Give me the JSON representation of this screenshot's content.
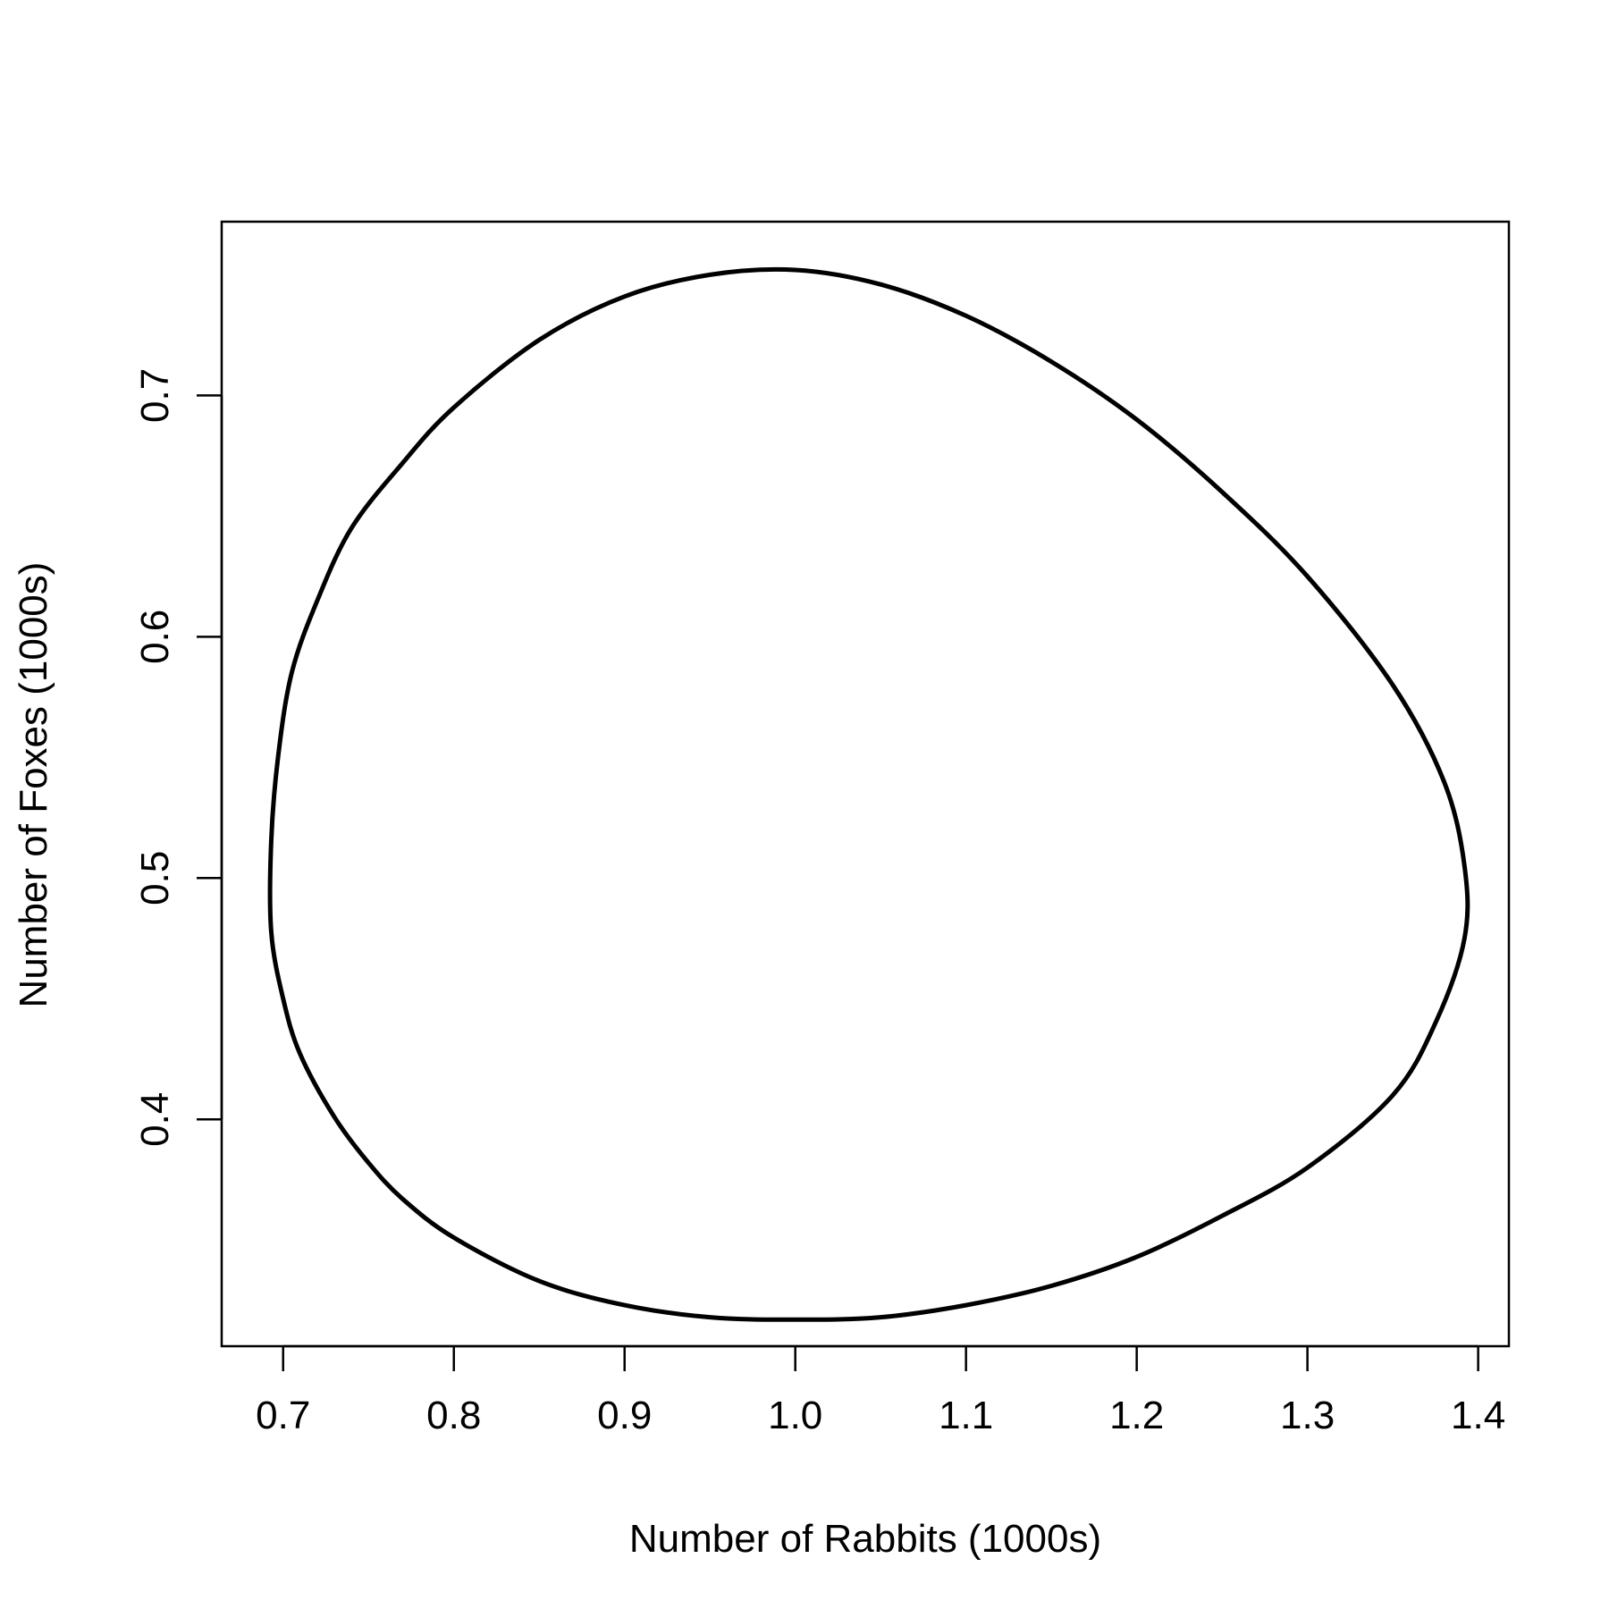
{
  "chart_data": {
    "type": "line",
    "title": "",
    "xlabel": "Number of Rabbits (1000s)",
    "ylabel": "Number of Foxes (1000s)",
    "xlim": [
      0.664,
      1.418
    ],
    "ylim": [
      0.306,
      0.772
    ],
    "x_ticks": [
      0.7,
      0.8,
      0.9,
      1.0,
      1.1,
      1.2,
      1.3,
      1.4
    ],
    "x_tick_labels": [
      "0.7",
      "0.8",
      "0.9",
      "1.0",
      "1.1",
      "1.2",
      "1.3",
      "1.4"
    ],
    "y_ticks": [
      0.4,
      0.5,
      0.6,
      0.7
    ],
    "y_tick_labels": [
      "0.4",
      "0.5",
      "0.6",
      "0.7"
    ],
    "grid": false,
    "legend": "none",
    "series": [
      {
        "line_color": "#000000",
        "x": [
          1.0,
          1.05,
          1.1,
          1.15,
          1.2,
          1.25,
          1.3,
          1.35,
          1.38,
          1.392,
          1.392,
          1.375,
          1.35,
          1.3,
          1.25,
          1.2,
          1.15,
          1.1,
          1.05,
          1.0,
          0.95,
          0.9,
          0.85,
          0.8,
          0.77,
          0.75,
          0.73,
          0.71,
          0.7,
          0.693,
          0.693,
          0.697,
          0.705,
          0.72,
          0.74,
          0.77,
          0.8,
          0.85,
          0.9,
          0.95,
          1.0
        ],
        "y": [
          0.752,
          0.746,
          0.733,
          0.714,
          0.69,
          0.66,
          0.625,
          0.58,
          0.54,
          0.505,
          0.475,
          0.44,
          0.41,
          0.38,
          0.36,
          0.343,
          0.331,
          0.323,
          0.318,
          0.317,
          0.318,
          0.323,
          0.333,
          0.351,
          0.367,
          0.382,
          0.401,
          0.427,
          0.45,
          0.478,
          0.515,
          0.55,
          0.585,
          0.615,
          0.645,
          0.672,
          0.695,
          0.723,
          0.741,
          0.75,
          0.752
        ]
      }
    ]
  }
}
